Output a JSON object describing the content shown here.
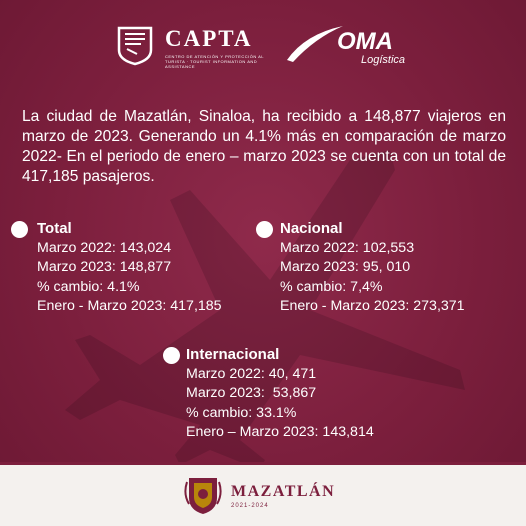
{
  "header": {
    "capta_name": "CAPTA",
    "capta_subtitle": "CENTRO DE ATENCIÓN Y PROTECCIÓN AL TURISTA · TOURIST INFORMATION AND ASSISTANCE",
    "oma_name": "OMA",
    "oma_subtitle": "Logística"
  },
  "intro": "La ciudad de Mazatlán, Sinaloa, ha recibido a 148,877 viajeros en marzo de 2023. Generando un 4.1% más en comparación de marzo 2022- En el periodo de enero – marzo 2023 se cuenta con un total de 417,185 pasajeros.",
  "stats": {
    "total": {
      "title": "Total",
      "lines": [
        "Marzo 2022: 143,024",
        "Marzo 2023: 148,877",
        "% cambio: 4.1%",
        "Enero - Marzo 2023: 417,185"
      ]
    },
    "nacional": {
      "title": "Nacional",
      "lines": [
        "Marzo 2022: 102,553",
        "Marzo 2023: 95, 010",
        "% cambio: 7,4%",
        "Enero - Marzo 2023: 273,371"
      ]
    },
    "internacional": {
      "title": "Internacional",
      "lines": [
        "Marzo 2022: 40, 471",
        "Marzo 2023:  53,867",
        "% cambio: 33.1%",
        "Enero – Marzo 2023: 143,814"
      ]
    }
  },
  "footer": {
    "municipality": "MAZATLÁN",
    "years": "2021-2024"
  },
  "colors": {
    "background": "#7c1f3d",
    "text": "#ffffff",
    "footer_bg": "#f4f1ee",
    "footer_text": "#7c1f3d"
  },
  "icons": [
    "capta-logo-icon",
    "oma-swoosh-icon",
    "airplane-silhouette-icon",
    "bullet-dot-icon",
    "municipal-seal-icon"
  ]
}
